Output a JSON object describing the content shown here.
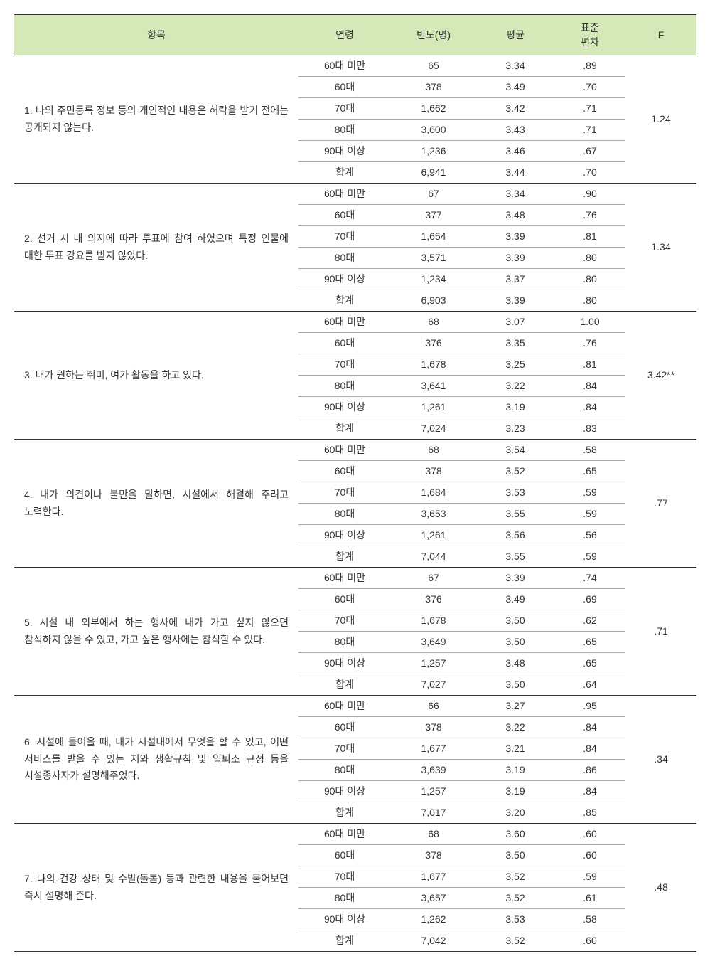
{
  "table": {
    "headers": {
      "item": "항목",
      "age": "연령",
      "freq": "빈도(명)",
      "mean": "평균",
      "std": "표준\n편차",
      "f": "F"
    },
    "colors": {
      "header_bg": "#d4e8b8",
      "border_dark": "#333333",
      "border_light": "#aaaaaa",
      "text": "#333333",
      "background": "#ffffff"
    },
    "font_size_pt": 10.5,
    "row_labels": [
      "60대 미만",
      "60대",
      "70대",
      "80대",
      "90대 이상",
      "합계"
    ],
    "groups": [
      {
        "item": "1. 나의 주민등록 정보 등의 개인적인 내용은 허락을 받기 전에는 공개되지 않는다.",
        "f": "1.24",
        "rows": [
          {
            "age": "60대 미만",
            "freq": "65",
            "mean": "3.34",
            "std": ".89"
          },
          {
            "age": "60대",
            "freq": "378",
            "mean": "3.49",
            "std": ".70"
          },
          {
            "age": "70대",
            "freq": "1,662",
            "mean": "3.42",
            "std": ".71"
          },
          {
            "age": "80대",
            "freq": "3,600",
            "mean": "3.43",
            "std": ".71"
          },
          {
            "age": "90대 이상",
            "freq": "1,236",
            "mean": "3.46",
            "std": ".67"
          },
          {
            "age": "합계",
            "freq": "6,941",
            "mean": "3.44",
            "std": ".70"
          }
        ]
      },
      {
        "item": "2. 선거 시 내 의지에 따라 투표에 참여 하였으며 특정 인물에 대한 투표 강요를 받지 않았다.",
        "f": "1.34",
        "rows": [
          {
            "age": "60대 미만",
            "freq": "67",
            "mean": "3.34",
            "std": ".90"
          },
          {
            "age": "60대",
            "freq": "377",
            "mean": "3.48",
            "std": ".76"
          },
          {
            "age": "70대",
            "freq": "1,654",
            "mean": "3.39",
            "std": ".81"
          },
          {
            "age": "80대",
            "freq": "3,571",
            "mean": "3.39",
            "std": ".80"
          },
          {
            "age": "90대 이상",
            "freq": "1,234",
            "mean": "3.37",
            "std": ".80"
          },
          {
            "age": "합계",
            "freq": "6,903",
            "mean": "3.39",
            "std": ".80"
          }
        ]
      },
      {
        "item": "3. 내가 원하는 취미, 여가 활동을 하고 있다.",
        "f": "3.42**",
        "rows": [
          {
            "age": "60대 미만",
            "freq": "68",
            "mean": "3.07",
            "std": "1.00"
          },
          {
            "age": "60대",
            "freq": "376",
            "mean": "3.35",
            "std": ".76"
          },
          {
            "age": "70대",
            "freq": "1,678",
            "mean": "3.25",
            "std": ".81"
          },
          {
            "age": "80대",
            "freq": "3,641",
            "mean": "3.22",
            "std": ".84"
          },
          {
            "age": "90대 이상",
            "freq": "1,261",
            "mean": "3.19",
            "std": ".84"
          },
          {
            "age": "합계",
            "freq": "7,024",
            "mean": "3.23",
            "std": ".83"
          }
        ]
      },
      {
        "item": "4. 내가 의견이나 불만을 말하면, 시설에서 해결해 주려고 노력한다.",
        "f": ".77",
        "rows": [
          {
            "age": "60대 미만",
            "freq": "68",
            "mean": "3.54",
            "std": ".58"
          },
          {
            "age": "60대",
            "freq": "378",
            "mean": "3.52",
            "std": ".65"
          },
          {
            "age": "70대",
            "freq": "1,684",
            "mean": "3.53",
            "std": ".59"
          },
          {
            "age": "80대",
            "freq": "3,653",
            "mean": "3.55",
            "std": ".59"
          },
          {
            "age": "90대 이상",
            "freq": "1,261",
            "mean": "3.56",
            "std": ".56"
          },
          {
            "age": "합계",
            "freq": "7,044",
            "mean": "3.55",
            "std": ".59"
          }
        ]
      },
      {
        "item": "5. 시설 내 외부에서 하는 행사에 내가 가고 싶지 않으면 참석하지 않을 수 있고, 가고 싶은 행사에는 참석할 수 있다.",
        "f": ".71",
        "rows": [
          {
            "age": "60대 미만",
            "freq": "67",
            "mean": "3.39",
            "std": ".74"
          },
          {
            "age": "60대",
            "freq": "376",
            "mean": "3.49",
            "std": ".69"
          },
          {
            "age": "70대",
            "freq": "1,678",
            "mean": "3.50",
            "std": ".62"
          },
          {
            "age": "80대",
            "freq": "3,649",
            "mean": "3.50",
            "std": ".65"
          },
          {
            "age": "90대 이상",
            "freq": "1,257",
            "mean": "3.48",
            "std": ".65"
          },
          {
            "age": "합계",
            "freq": "7,027",
            "mean": "3.50",
            "std": ".64"
          }
        ]
      },
      {
        "item": "6. 시설에 들어올 때, 내가 시설내에서 무엇을 할 수 있고, 어떤 서비스를 받을 수 있는 지와 생활규칙 및 입퇴소 규정 등을 시설종사자가 설명해주었다.",
        "f": ".34",
        "rows": [
          {
            "age": "60대 미만",
            "freq": "66",
            "mean": "3.27",
            "std": ".95"
          },
          {
            "age": "60대",
            "freq": "378",
            "mean": "3.22",
            "std": ".84"
          },
          {
            "age": "70대",
            "freq": "1,677",
            "mean": "3.21",
            "std": ".84"
          },
          {
            "age": "80대",
            "freq": "3,639",
            "mean": "3.19",
            "std": ".86"
          },
          {
            "age": "90대 이상",
            "freq": "1,257",
            "mean": "3.19",
            "std": ".84"
          },
          {
            "age": "합계",
            "freq": "7,017",
            "mean": "3.20",
            "std": ".85"
          }
        ]
      },
      {
        "item": "7. 나의 건강 상태 및 수발(돌봄) 등과 관련한 내용을 물어보면 즉시 설명해 준다.",
        "f": ".48",
        "rows": [
          {
            "age": "60대 미만",
            "freq": "68",
            "mean": "3.60",
            "std": ".60"
          },
          {
            "age": "60대",
            "freq": "378",
            "mean": "3.50",
            "std": ".60"
          },
          {
            "age": "70대",
            "freq": "1,677",
            "mean": "3.52",
            "std": ".59"
          },
          {
            "age": "80대",
            "freq": "3,657",
            "mean": "3.52",
            "std": ".61"
          },
          {
            "age": "90대 이상",
            "freq": "1,262",
            "mean": "3.53",
            "std": ".58"
          },
          {
            "age": "합계",
            "freq": "7,042",
            "mean": "3.52",
            "std": ".60"
          }
        ]
      }
    ]
  }
}
